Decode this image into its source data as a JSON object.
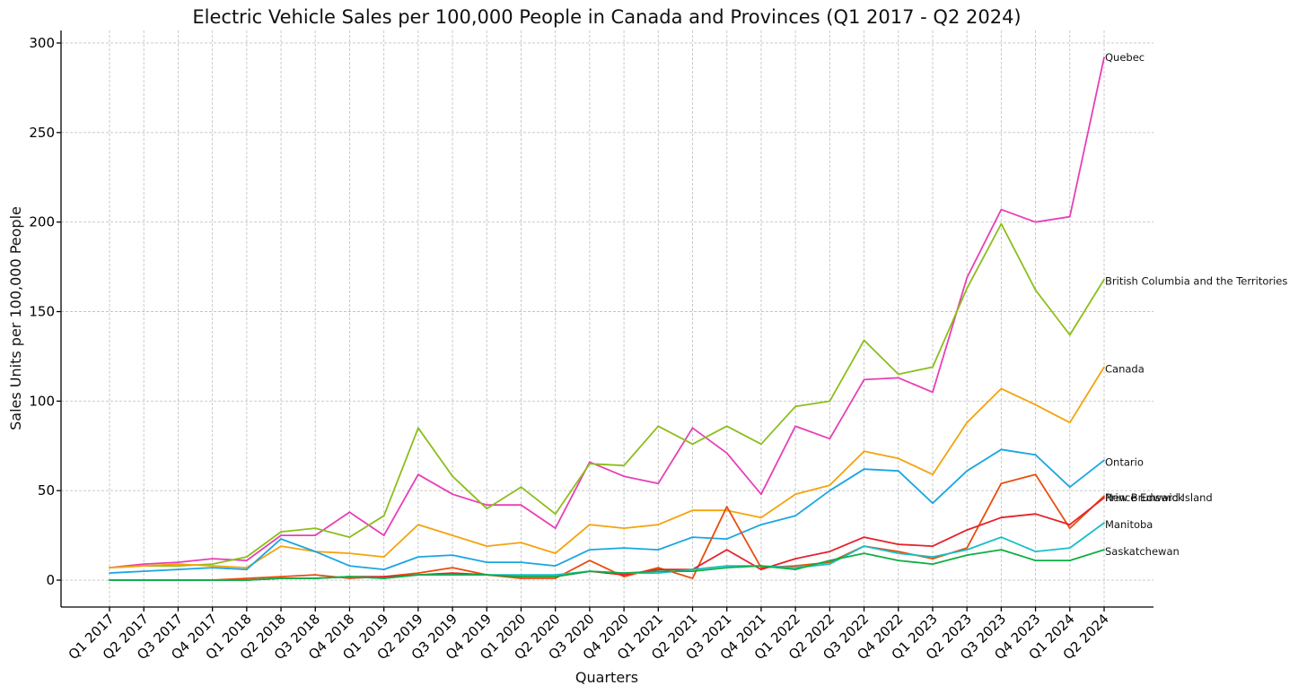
{
  "chart_data": {
    "type": "line",
    "title": "Electric Vehicle Sales per 100,000 People in Canada and Provinces (Q1 2017 - Q2 2024)",
    "xlabel": "Quarters",
    "ylabel": "Sales Units per 100,000 People",
    "ylim": [
      -15,
      307
    ],
    "yticks": [
      0,
      50,
      100,
      150,
      200,
      250,
      300
    ],
    "grid": true,
    "legend": "end-of-line labels",
    "categories": [
      "Q1 2017",
      "Q2 2017",
      "Q3 2017",
      "Q4 2017",
      "Q1 2018",
      "Q2 2018",
      "Q3 2018",
      "Q4 2018",
      "Q1 2019",
      "Q2 2019",
      "Q3 2019",
      "Q4 2019",
      "Q1 2020",
      "Q2 2020",
      "Q3 2020",
      "Q4 2020",
      "Q1 2021",
      "Q2 2021",
      "Q3 2021",
      "Q4 2021",
      "Q1 2022",
      "Q2 2022",
      "Q3 2022",
      "Q4 2022",
      "Q1 2023",
      "Q2 2023",
      "Q3 2023",
      "Q4 2023",
      "Q1 2024",
      "Q2 2024"
    ],
    "series": [
      {
        "name": "Quebec",
        "color": "#e83fb6",
        "label_y": 292,
        "values": [
          7,
          9,
          10,
          12,
          11,
          25,
          25,
          38,
          25,
          59,
          48,
          42,
          42,
          29,
          66,
          58,
          54,
          85,
          71,
          48,
          86,
          79,
          112,
          113,
          105,
          169,
          207,
          200,
          203,
          292
        ]
      },
      {
        "name": "British Columbia and the Territories",
        "color": "#8bbe1b",
        "label_y": 167,
        "values": [
          7,
          8,
          8,
          9,
          13,
          27,
          29,
          24,
          36,
          85,
          58,
          40,
          52,
          37,
          65,
          64,
          86,
          76,
          86,
          76,
          97,
          100,
          134,
          115,
          119,
          163,
          199,
          162,
          137,
          168
        ]
      },
      {
        "name": "Canada",
        "color": "#f4a30c",
        "label_y": 118,
        "values": [
          7,
          8,
          9,
          8,
          7,
          19,
          16,
          15,
          13,
          31,
          25,
          19,
          21,
          15,
          31,
          29,
          31,
          39,
          39,
          35,
          48,
          53,
          72,
          68,
          59,
          88,
          107,
          98,
          88,
          119
        ]
      },
      {
        "name": "Ontario",
        "color": "#1aa6e0",
        "label_y": 66,
        "values": [
          4,
          5,
          6,
          7,
          6,
          23,
          16,
          8,
          6,
          13,
          14,
          10,
          10,
          8,
          17,
          18,
          17,
          24,
          23,
          31,
          36,
          50,
          62,
          61,
          43,
          61,
          73,
          70,
          52,
          67
        ]
      },
      {
        "name": "New Brunswick",
        "color": "#e84e0e",
        "label_y": 46,
        "values": [
          0,
          0,
          0,
          0,
          1,
          2,
          3,
          1,
          2,
          4,
          7,
          3,
          1,
          1,
          11,
          2,
          7,
          1,
          41,
          7,
          8,
          10,
          19,
          16,
          12,
          18,
          54,
          59,
          29,
          47
        ]
      },
      {
        "name": "Prince Edward Island",
        "color": "#e6202a",
        "label_y": 46,
        "values": [
          0,
          0,
          0,
          0,
          0,
          1,
          1,
          2,
          2,
          3,
          4,
          3,
          2,
          2,
          5,
          3,
          6,
          6,
          17,
          6,
          12,
          16,
          24,
          20,
          19,
          28,
          35,
          37,
          31,
          46
        ]
      },
      {
        "name": "Manitoba",
        "color": "#17bfc7",
        "label_y": 31,
        "values": [
          0,
          0,
          0,
          0,
          0,
          1,
          1,
          2,
          1,
          3,
          3,
          3,
          3,
          3,
          5,
          4,
          4,
          6,
          8,
          8,
          7,
          9,
          19,
          15,
          13,
          17,
          24,
          16,
          18,
          32
        ]
      },
      {
        "name": "Saskatchewan",
        "color": "#0fae43",
        "label_y": 16,
        "values": [
          0,
          0,
          0,
          0,
          0,
          1,
          1,
          2,
          1,
          3,
          3,
          3,
          2,
          2,
          5,
          4,
          5,
          5,
          7,
          8,
          6,
          11,
          15,
          11,
          9,
          14,
          17,
          11,
          11,
          17
        ]
      }
    ]
  }
}
